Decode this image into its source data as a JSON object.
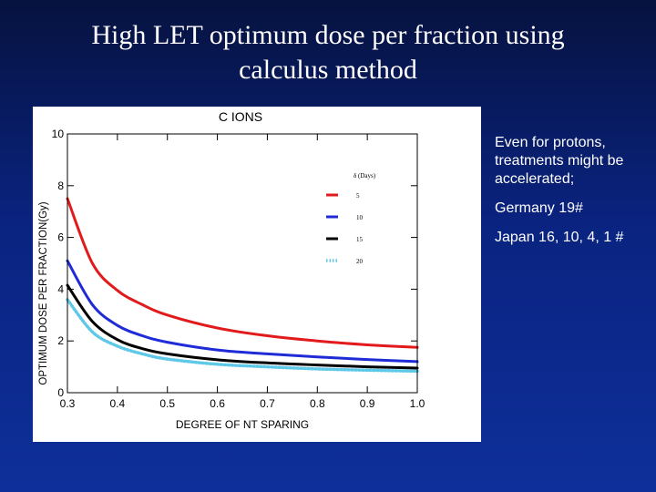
{
  "slide": {
    "title_line1": "High LET optimum dose per fraction  using",
    "title_line2": "calculus method",
    "notes": [
      "Even for protons, treatments might be accelerated;",
      "Germany 19#",
      "Japan 16, 10, 4, 1 #"
    ]
  },
  "chart_data": {
    "type": "line",
    "title": "C IONS",
    "xlabel": "DEGREE OF NT SPARING",
    "ylabel": "OPTIMUM DOSE PER FRACTION(Gy)",
    "xlim": [
      0.3,
      1.0
    ],
    "ylim": [
      0,
      10
    ],
    "xticks": [
      "0.3",
      "0.4",
      "0.5",
      "0.6",
      "0.7",
      "0.8",
      "0.9",
      "1.0"
    ],
    "yticks": [
      "0",
      "2",
      "4",
      "6",
      "8",
      "10"
    ],
    "grid": false,
    "legend_title": "δ (Days)",
    "legend_position": "top-right",
    "x": [
      0.3,
      0.35,
      0.4,
      0.45,
      0.5,
      0.6,
      0.7,
      0.8,
      0.9,
      1.0
    ],
    "series": [
      {
        "name": "5",
        "color": "#e31a1c",
        "style": "solid",
        "values": [
          7.5,
          5.0,
          3.95,
          3.4,
          3.0,
          2.5,
          2.2,
          2.0,
          1.85,
          1.75
        ]
      },
      {
        "name": "10",
        "color": "#1f2bd6",
        "style": "solid",
        "values": [
          5.1,
          3.4,
          2.6,
          2.2,
          1.95,
          1.65,
          1.5,
          1.38,
          1.28,
          1.2
        ]
      },
      {
        "name": "15",
        "color": "#000000",
        "style": "solid",
        "values": [
          4.15,
          2.75,
          2.05,
          1.7,
          1.5,
          1.27,
          1.15,
          1.07,
          1.0,
          0.95
        ]
      },
      {
        "name": "20",
        "color": "#5ec8e8",
        "style": "dotted",
        "values": [
          3.6,
          2.35,
          1.8,
          1.5,
          1.3,
          1.1,
          1.0,
          0.92,
          0.87,
          0.83
        ]
      }
    ]
  }
}
